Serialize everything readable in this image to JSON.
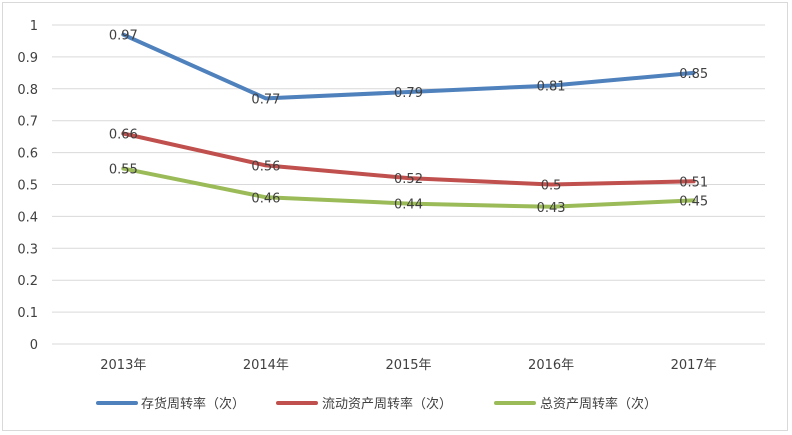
{
  "chart_data": {
    "type": "line",
    "categories": [
      "2013年",
      "2014年",
      "2015年",
      "2016年",
      "2017年"
    ],
    "series": [
      {
        "name": "存货周转率（次）",
        "values": [
          0.97,
          0.77,
          0.79,
          0.81,
          0.85
        ],
        "labels": [
          "0.97",
          "0.77",
          "0.79",
          "0.81",
          "0.85"
        ],
        "color": "#4F81BD"
      },
      {
        "name": "流动资产周转率（次）",
        "values": [
          0.66,
          0.56,
          0.52,
          0.5,
          0.51
        ],
        "labels": [
          "0.66",
          "0.56",
          "0.52",
          "0.5",
          "0.51"
        ],
        "color": "#C0504D"
      },
      {
        "name": "总资产周转率（次）",
        "values": [
          0.55,
          0.46,
          0.44,
          0.43,
          0.45
        ],
        "labels": [
          "0.55",
          "0.46",
          "0.44",
          "0.43",
          "0.45"
        ],
        "color": "#9BBB59"
      }
    ],
    "y_ticks": [
      "0",
      "0.1",
      "0.2",
      "0.3",
      "0.4",
      "0.5",
      "0.6",
      "0.7",
      "0.8",
      "0.9",
      "1"
    ],
    "ylim": [
      0,
      1
    ],
    "grid": true,
    "legend": "bottom"
  }
}
